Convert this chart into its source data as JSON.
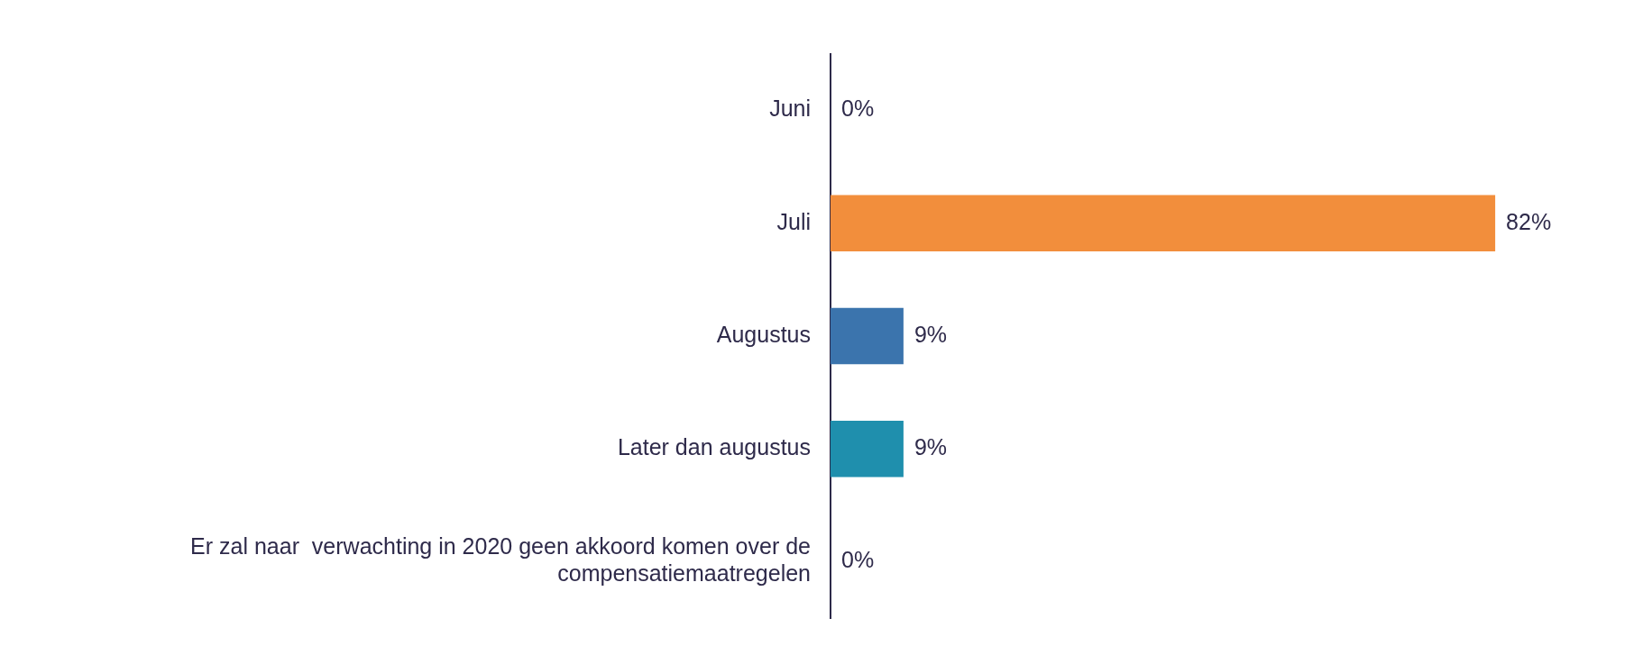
{
  "chart_data": {
    "type": "bar",
    "orientation": "horizontal",
    "categories": [
      "Juni",
      "Juli",
      "Augustus",
      "Later dan augustus",
      "Er zal naar  verwachting in 2020 geen akkoord komen over de compensatiemaatregelen"
    ],
    "values": [
      0,
      82,
      9,
      9,
      0
    ],
    "colors": [
      "#f28e3c",
      "#f28e3c",
      "#3b74ad",
      "#1f8fad",
      "#1f8fad"
    ],
    "value_labels": [
      "0%",
      "82%",
      "9%",
      "9%",
      "0%"
    ]
  }
}
